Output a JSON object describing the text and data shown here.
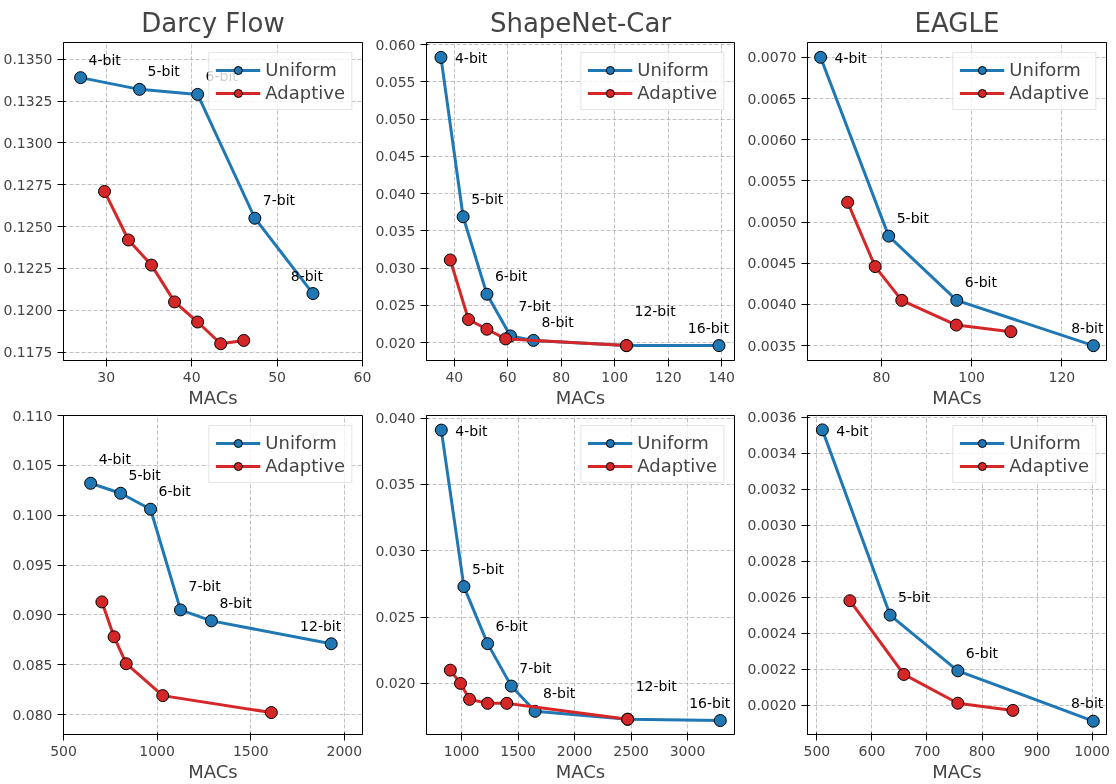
{
  "chart_data": [
    {
      "type": "line",
      "title": "Darcy Flow",
      "xlabel": "MACs",
      "marker": "circle",
      "grid": true,
      "legend": "top right",
      "xlim": [
        25,
        60
      ],
      "xticks": [
        30,
        40,
        50,
        60
      ],
      "ylim": [
        0.117,
        0.136
      ],
      "yticks": [
        {
          "value": 0.1175,
          "label": "0.1175"
        },
        {
          "value": 0.12,
          "label": "0.1200"
        },
        {
          "value": 0.1225,
          "label": "0.1225"
        },
        {
          "value": 0.125,
          "label": "0.1250"
        },
        {
          "value": 0.1275,
          "label": "0.1275"
        },
        {
          "value": 0.13,
          "label": "0.1300"
        },
        {
          "value": 0.1325,
          "label": "0.1325"
        },
        {
          "value": 0.135,
          "label": "0.1350"
        }
      ],
      "series": [
        {
          "name": "Uniform",
          "color": "#1f77b4",
          "x": [
            27,
            33.9,
            40.7,
            47.4,
            54.2
          ],
          "values": [
            0.1339,
            0.1332,
            0.1329,
            0.1255,
            0.121
          ]
        },
        {
          "name": "Adaptive",
          "color": "#d62728",
          "x": [
            29.8,
            32.6,
            35.3,
            38,
            40.7,
            43.4,
            46.1
          ],
          "values": [
            0.1271,
            0.1242,
            0.1227,
            0.1205,
            0.1193,
            0.118,
            0.1182
          ]
        }
      ],
      "annotations": [
        {
          "text": "4-bit",
          "x": 27,
          "y": 0.1339
        },
        {
          "text": "5-bit",
          "x": 33.9,
          "y": 0.1332
        },
        {
          "text": "6-bit",
          "x": 40.7,
          "y": 0.1329
        },
        {
          "text": "7-bit",
          "x": 47.4,
          "y": 0.1255
        },
        {
          "text": "8-bit",
          "x": 54.2,
          "y": 0.121
        }
      ]
    },
    {
      "type": "line",
      "title": "ShapeNet-Car",
      "xlabel": "MACs",
      "marker": "circle",
      "grid": true,
      "legend": "top right",
      "xlim": [
        29.6,
        144.8
      ],
      "xticks": [
        40,
        60,
        80,
        100,
        120,
        140
      ],
      "ylim": [
        0.0176,
        0.0603
      ],
      "yticks": [
        {
          "value": 0.02,
          "label": "0.020"
        },
        {
          "value": 0.025,
          "label": "0.025"
        },
        {
          "value": 0.03,
          "label": "0.030"
        },
        {
          "value": 0.035,
          "label": "0.035"
        },
        {
          "value": 0.04,
          "label": "0.040"
        },
        {
          "value": 0.045,
          "label": "0.045"
        },
        {
          "value": 0.05,
          "label": "0.050"
        },
        {
          "value": 0.055,
          "label": "0.055"
        },
        {
          "value": 0.06,
          "label": "0.060"
        }
      ],
      "series": [
        {
          "name": "Uniform",
          "color": "#1f77b4",
          "x": [
            35,
            43.3,
            52.2,
            61,
            69.6,
            104.4,
            139
          ],
          "values": [
            0.0583,
            0.0369,
            0.0265,
            0.0209,
            0.0203,
            0.0196,
            0.0196
          ]
        },
        {
          "name": "Adaptive",
          "color": "#d62728",
          "x": [
            38.5,
            45.3,
            52.2,
            59.2,
            104.4
          ],
          "values": [
            0.0311,
            0.0231,
            0.0218,
            0.0205,
            0.0196
          ]
        }
      ],
      "annotations": [
        {
          "text": "4-bit",
          "x": 35,
          "y": 0.0583
        },
        {
          "text": "5-bit",
          "x": 43.3,
          "y": 0.0369
        },
        {
          "text": "6-bit",
          "x": 52.2,
          "y": 0.0265
        },
        {
          "text": "7-bit",
          "x": 61,
          "y": 0.0209
        },
        {
          "text": "8-bit",
          "x": 69.6,
          "y": 0.0203
        },
        {
          "text": "12-bit",
          "x": 104.4,
          "y": 0.0196
        },
        {
          "text": "16-bit",
          "x": 139,
          "y": 0.0196
        }
      ]
    },
    {
      "type": "line",
      "title": "EAGLE",
      "xlabel": "MACs",
      "marker": "circle",
      "grid": true,
      "legend": "top right",
      "xlim": [
        63.6,
        129.9
      ],
      "xticks": [
        80,
        100,
        120
      ],
      "ylim": [
        0.00332,
        0.00718
      ],
      "yticks": [
        {
          "value": 0.0035,
          "label": "0.0035"
        },
        {
          "value": 0.004,
          "label": "0.0040"
        },
        {
          "value": 0.0045,
          "label": "0.0045"
        },
        {
          "value": 0.005,
          "label": "0.0050"
        },
        {
          "value": 0.0055,
          "label": "0.0055"
        },
        {
          "value": 0.006,
          "label": "0.0060"
        },
        {
          "value": 0.0065,
          "label": "0.0065"
        },
        {
          "value": 0.007,
          "label": "0.0070"
        }
      ],
      "series": [
        {
          "name": "Uniform",
          "color": "#1f77b4",
          "x": [
            66.5,
            81.6,
            96.7,
            127
          ],
          "values": [
            0.007,
            0.00483,
            0.00405,
            0.0035
          ]
        },
        {
          "name": "Adaptive",
          "color": "#d62728",
          "x": [
            72.5,
            78.6,
            84.5,
            96.6,
            108.7
          ],
          "values": [
            0.00524,
            0.00446,
            0.00405,
            0.00375,
            0.00367
          ]
        }
      ],
      "annotations": [
        {
          "text": "4-bit",
          "x": 66.5,
          "y": 0.007
        },
        {
          "text": "5-bit",
          "x": 81.6,
          "y": 0.00483
        },
        {
          "text": "6-bit",
          "x": 96.7,
          "y": 0.00405
        },
        {
          "text": "8-bit",
          "x": 127,
          "y": 0.0035
        }
      ]
    },
    {
      "type": "line",
      "xlabel": "MACs",
      "marker": "circle",
      "grid": true,
      "legend": "top right",
      "xlim": [
        500,
        2097
      ],
      "xticks": [
        500,
        1000,
        1500,
        2000
      ],
      "ylim": [
        0.078,
        0.11
      ],
      "yticks": [
        {
          "value": 0.08,
          "label": "0.080"
        },
        {
          "value": 0.085,
          "label": "0.085"
        },
        {
          "value": 0.09,
          "label": "0.090"
        },
        {
          "value": 0.095,
          "label": "0.095"
        },
        {
          "value": 0.1,
          "label": "0.100"
        },
        {
          "value": 0.105,
          "label": "0.105"
        },
        {
          "value": 0.11,
          "label": "0.110"
        }
      ],
      "series": [
        {
          "name": "Uniform",
          "color": "#1f77b4",
          "x": [
            645,
            805,
            965,
            1125,
            1290,
            1930
          ],
          "values": [
            0.1032,
            0.1022,
            0.1006,
            0.0905,
            0.0894,
            0.0871
          ]
        },
        {
          "name": "Adaptive",
          "color": "#d62728",
          "x": [
            705,
            770,
            835,
            1030,
            1610
          ],
          "values": [
            0.0913,
            0.0878,
            0.0851,
            0.0819,
            0.0802
          ]
        }
      ],
      "annotations": [
        {
          "text": "4-bit",
          "x": 645,
          "y": 0.1032
        },
        {
          "text": "5-bit",
          "x": 805,
          "y": 0.1022
        },
        {
          "text": "6-bit",
          "x": 965,
          "y": 0.1006
        },
        {
          "text": "7-bit",
          "x": 1125,
          "y": 0.0905
        },
        {
          "text": "8-bit",
          "x": 1290,
          "y": 0.0894
        },
        {
          "text": "12-bit",
          "x": 1930,
          "y": 0.0871
        }
      ]
    },
    {
      "type": "line",
      "xlabel": "MACs",
      "marker": "circle",
      "grid": true,
      "legend": "top right",
      "xlim": [
        689,
        3416
      ],
      "xticks": [
        1000,
        1500,
        2000,
        2500,
        3000
      ],
      "ylim": [
        0.01615,
        0.0402
      ],
      "yticks": [
        {
          "value": 0.02,
          "label": "0.020"
        },
        {
          "value": 0.025,
          "label": "0.025"
        },
        {
          "value": 0.03,
          "label": "0.030"
        },
        {
          "value": 0.035,
          "label": "0.035"
        },
        {
          "value": 0.04,
          "label": "0.040"
        }
      ],
      "series": [
        {
          "name": "Uniform",
          "color": "#1f77b4",
          "x": [
            820,
            1020,
            1230,
            1440,
            1650,
            2470,
            3290
          ],
          "values": [
            0.0391,
            0.0273,
            0.023,
            0.0198,
            0.0179,
            0.0173,
            0.0172
          ]
        },
        {
          "name": "Adaptive",
          "color": "#d62728",
          "x": [
            900,
            990,
            1070,
            1230,
            1400,
            2470
          ],
          "values": [
            0.021,
            0.02,
            0.0188,
            0.0185,
            0.0185,
            0.0173
          ]
        }
      ],
      "annotations": [
        {
          "text": "4-bit",
          "x": 820,
          "y": 0.0391
        },
        {
          "text": "5-bit",
          "x": 1020,
          "y": 0.0273
        },
        {
          "text": "6-bit",
          "x": 1230,
          "y": 0.023
        },
        {
          "text": "7-bit",
          "x": 1440,
          "y": 0.0198
        },
        {
          "text": "8-bit",
          "x": 1650,
          "y": 0.0179
        },
        {
          "text": "12-bit",
          "x": 2470,
          "y": 0.0173
        },
        {
          "text": "16-bit",
          "x": 3290,
          "y": 0.0172
        }
      ]
    },
    {
      "type": "line",
      "xlabel": "MACs",
      "marker": "circle",
      "grid": true,
      "legend": "top right",
      "xlim": [
        483,
        1026
      ],
      "xticks": [
        500,
        600,
        700,
        800,
        900,
        1000
      ],
      "ylim": [
        0.001836,
        0.00361
      ],
      "yticks": [
        {
          "value": 0.002,
          "label": "0.0020"
        },
        {
          "value": 0.0022,
          "label": "0.0022"
        },
        {
          "value": 0.0024,
          "label": "0.0024"
        },
        {
          "value": 0.0026,
          "label": "0.0026"
        },
        {
          "value": 0.0028,
          "label": "0.0028"
        },
        {
          "value": 0.003,
          "label": "0.0030"
        },
        {
          "value": 0.0032,
          "label": "0.0032"
        },
        {
          "value": 0.0034,
          "label": "0.0034"
        },
        {
          "value": 0.0036,
          "label": "0.0036"
        }
      ],
      "series": [
        {
          "name": "Uniform",
          "color": "#1f77b4",
          "x": [
            510,
            633,
            756,
            1002
          ],
          "values": [
            0.00353,
            0.0025,
            0.00219,
            0.00191
          ]
        },
        {
          "name": "Adaptive",
          "color": "#d62728",
          "x": [
            560,
            658,
            756,
            856
          ],
          "values": [
            0.00258,
            0.00217,
            0.00201,
            0.00197
          ]
        }
      ],
      "annotations": [
        {
          "text": "4-bit",
          "x": 510,
          "y": 0.00353
        },
        {
          "text": "5-bit",
          "x": 633,
          "y": 0.0025
        },
        {
          "text": "6-bit",
          "x": 756,
          "y": 0.00219
        },
        {
          "text": "8-bit",
          "x": 1002,
          "y": 0.00191
        }
      ]
    }
  ]
}
